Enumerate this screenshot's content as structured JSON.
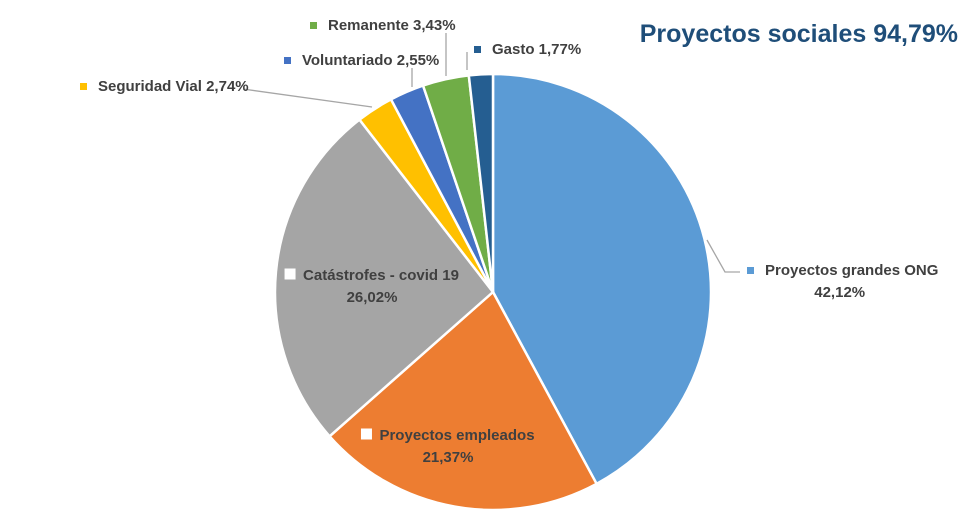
{
  "chart_data": {
    "type": "pie",
    "title": "Proyectos sociales 94,79%",
    "slices": [
      {
        "name": "Proyectos grandes ONG",
        "value": 42.12,
        "display": "42,12%",
        "color": "#5b9bd5"
      },
      {
        "name": "Proyectos empleados",
        "value": 21.37,
        "display": "21,37%",
        "color": "#ed7d31"
      },
      {
        "name": "Catástrofes - covid 19",
        "value": 26.02,
        "display": "26,02%",
        "color": "#a5a5a5"
      },
      {
        "name": "Seguridad Vial",
        "value": 2.74,
        "display": "2,74%",
        "color": "#ffc000"
      },
      {
        "name": "Voluntariado",
        "value": 2.55,
        "display": "2,55%",
        "color": "#4472c4"
      },
      {
        "name": "Remanente",
        "value": 3.43,
        "display": "3,43%",
        "color": "#70ad47"
      },
      {
        "name": "Gasto",
        "value": 1.77,
        "display": "1,77%",
        "color": "#255e91"
      }
    ],
    "start_angle": "12 o'clock",
    "direction": "clockwise",
    "legend": "none (data labels with callouts)"
  }
}
